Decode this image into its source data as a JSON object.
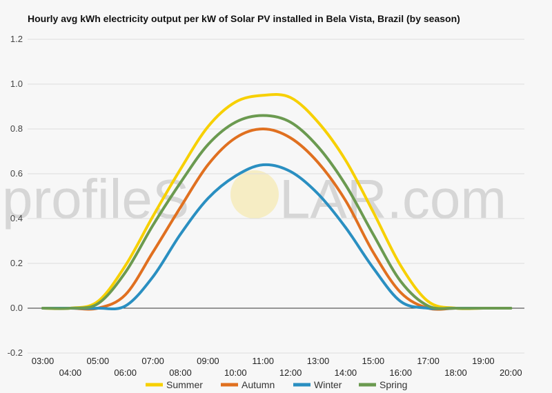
{
  "title": "Hourly avg kWh electricity output per kW of Solar PV installed in Bela Vista, Brazil (by season)",
  "watermark": {
    "left": "profileS",
    "right": "LAR.com"
  },
  "chart_data": {
    "type": "line",
    "title": "Hourly avg kWh electricity output per kW of Solar PV installed in Bela Vista, Brazil (by season)",
    "xlabel": "",
    "ylabel": "",
    "x": [
      "03:00",
      "04:00",
      "05:00",
      "06:00",
      "07:00",
      "08:00",
      "09:00",
      "10:00",
      "11:00",
      "12:00",
      "13:00",
      "14:00",
      "15:00",
      "16:00",
      "17:00",
      "18:00",
      "19:00",
      "20:00"
    ],
    "ylim": [
      -0.2,
      1.2
    ],
    "yticks": [
      "-0.2",
      "0.0",
      "0.2",
      "0.4",
      "0.6",
      "0.8",
      "1.0",
      "1.2"
    ],
    "grid": true,
    "legend_position": "bottom",
    "series": [
      {
        "name": "Summer",
        "color": "#f7d000",
        "values": [
          0,
          0,
          0.03,
          0.19,
          0.41,
          0.62,
          0.81,
          0.92,
          0.95,
          0.94,
          0.83,
          0.66,
          0.43,
          0.19,
          0.03,
          0,
          0,
          0
        ]
      },
      {
        "name": "Autumn",
        "color": "#e07020",
        "values": [
          0,
          0,
          0,
          0.06,
          0.25,
          0.45,
          0.64,
          0.76,
          0.8,
          0.76,
          0.65,
          0.48,
          0.25,
          0.07,
          0,
          0,
          0,
          0
        ]
      },
      {
        "name": "Winter",
        "color": "#2a8fc1",
        "values": [
          0,
          0,
          0,
          0.01,
          0.14,
          0.33,
          0.49,
          0.59,
          0.64,
          0.61,
          0.51,
          0.36,
          0.18,
          0.03,
          0,
          0,
          0,
          0
        ]
      },
      {
        "name": "Spring",
        "color": "#6b9a50",
        "values": [
          0,
          0,
          0.02,
          0.16,
          0.37,
          0.56,
          0.73,
          0.83,
          0.86,
          0.83,
          0.72,
          0.55,
          0.33,
          0.12,
          0.01,
          0,
          0,
          0
        ]
      }
    ]
  }
}
